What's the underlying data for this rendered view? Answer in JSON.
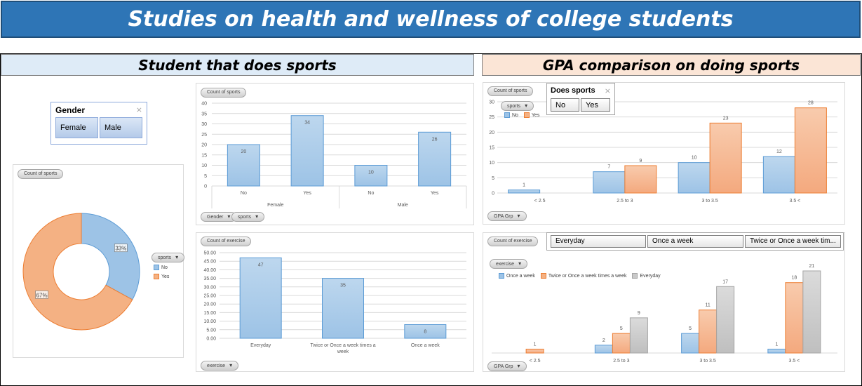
{
  "title": "Studies on health and wellness of college students",
  "sections": {
    "left": "Student that does sports",
    "right": "GPA comparison on doing sports"
  },
  "gender_slicer": {
    "title": "Gender",
    "items": [
      "Female",
      "Male"
    ]
  },
  "sports_slicer": {
    "title": "Does sports",
    "items": [
      "No",
      "Yes"
    ]
  },
  "exercise_slicer": {
    "items": [
      "Everyday",
      "Once a week",
      "Twice or Once a week tim..."
    ]
  },
  "colors": {
    "blue": "#9dc3e6",
    "blue_edge": "#5b9bd5",
    "orange": "#f4b183",
    "orange_edge": "#ed7d31",
    "gray": "#c9c9c9",
    "gray_edge": "#a5a5a5"
  },
  "charts": {
    "donut": {
      "field": "Count of sports",
      "legend_filter": "sports",
      "type": "pie",
      "slices": [
        {
          "name": "No",
          "value": 33,
          "label": "33%"
        },
        {
          "name": "Yes",
          "value": 67,
          "label": "67%"
        }
      ]
    },
    "gender_bar": {
      "field": "Count of sports",
      "filters": [
        "Gender",
        "sports"
      ],
      "type": "bar",
      "groups": [
        "Female",
        "Male"
      ],
      "categories": [
        "No",
        "Yes",
        "No",
        "Yes"
      ],
      "values": [
        20,
        34,
        10,
        26
      ],
      "yticks": [
        "0",
        "5",
        "10",
        "15",
        "20",
        "25",
        "30",
        "35",
        "40"
      ],
      "ylim": [
        0,
        40
      ]
    },
    "exercise_bar": {
      "field": "Count of exercise",
      "filter": "exercise",
      "type": "bar",
      "categories": [
        "Everyday",
        "Twice or Once a week times a week",
        "Once a week"
      ],
      "values": [
        47,
        35,
        8
      ],
      "yticks": [
        "0.00",
        "5.00",
        "10.00",
        "15.00",
        "20.00",
        "25.00",
        "30.00",
        "35.00",
        "40.00",
        "45.00",
        "50.00"
      ],
      "ylim": [
        0,
        50
      ]
    },
    "gpa_sports": {
      "field": "Count of sports",
      "legend_filter": "sports",
      "axis_filter": "GPA Grp",
      "type": "bar",
      "categories": [
        "< 2.5",
        "2.5 to 3",
        "3 to 3.5",
        "3.5 <"
      ],
      "series": [
        {
          "name": "No",
          "values": [
            1,
            7,
            10,
            12
          ]
        },
        {
          "name": "Yes",
          "values": [
            null,
            9,
            23,
            28
          ]
        }
      ],
      "yticks": [
        "0",
        "5",
        "10",
        "15",
        "20",
        "25",
        "30"
      ],
      "ylim": [
        0,
        30
      ]
    },
    "gpa_exercise": {
      "field": "Count of exercise",
      "legend_filter": "exercise",
      "axis_filter": "GPA Grp",
      "type": "bar",
      "categories": [
        "< 2.5",
        "2.5 to 3",
        "3 to 3.5",
        "3.5 <"
      ],
      "series": [
        {
          "name": "Once a week",
          "values": [
            null,
            2,
            5,
            1
          ]
        },
        {
          "name": "Twice or Once a week times a week",
          "values": [
            1,
            5,
            11,
            18
          ]
        },
        {
          "name": "Everyday",
          "values": [
            null,
            9,
            17,
            21
          ]
        }
      ],
      "ylim": [
        0,
        21
      ]
    }
  }
}
